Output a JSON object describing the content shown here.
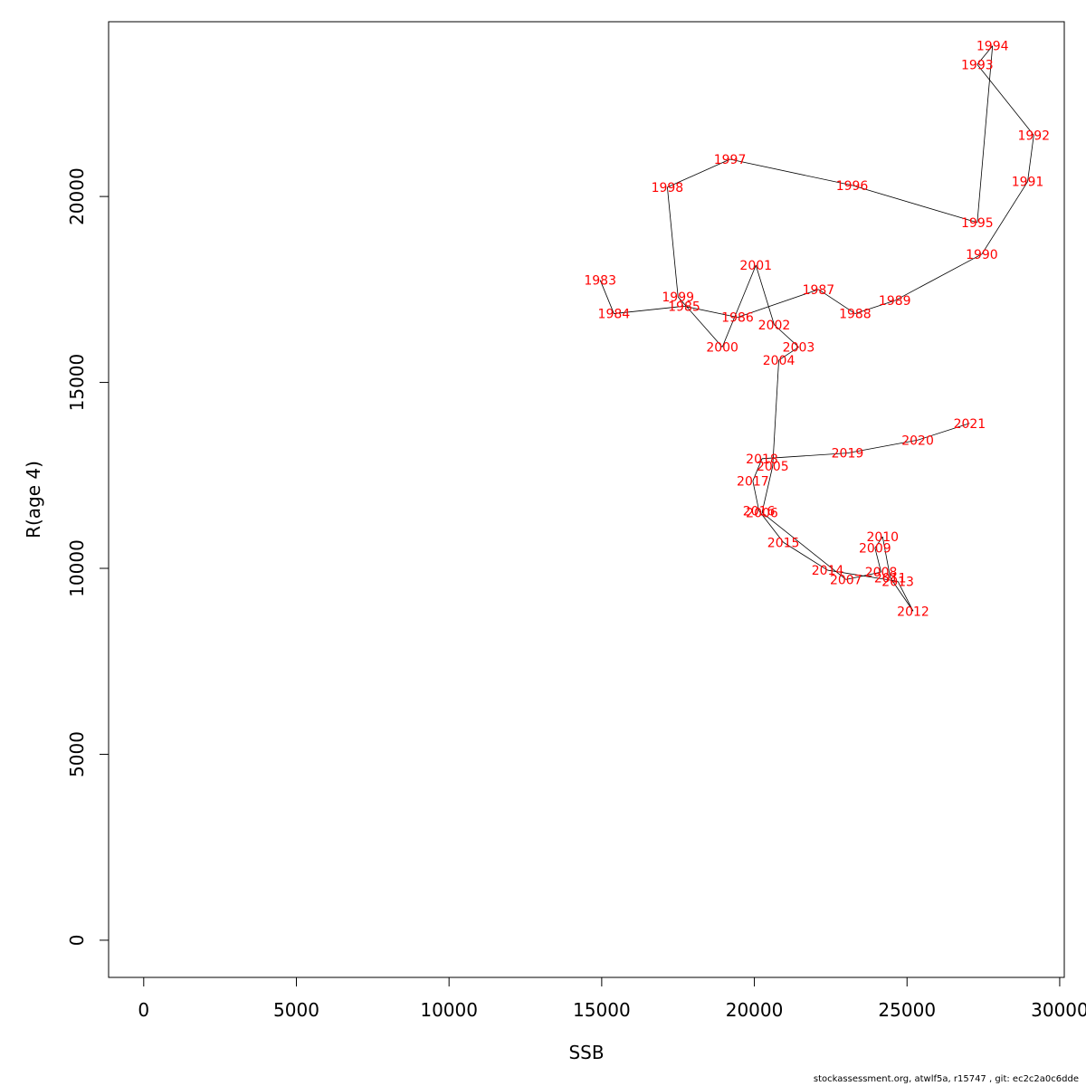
{
  "chart_data": {
    "type": "line",
    "xlabel": "SSB",
    "ylabel": "R(age 4)",
    "xlim": [
      -1150,
      30150
    ],
    "ylim": [
      -1000,
      24700
    ],
    "x_ticks": [
      0,
      5000,
      10000,
      15000,
      20000,
      25000,
      30000
    ],
    "y_ticks": [
      0,
      5000,
      10000,
      15000,
      20000
    ],
    "x_tick_labels": [
      "0",
      "5000",
      "10000",
      "15000",
      "20000",
      "25000",
      "30000"
    ],
    "y_tick_labels": [
      "0",
      "5000",
      "10000",
      "15000",
      "20000"
    ],
    "line_color": "#000000",
    "label_color": "#ff0000",
    "points": [
      {
        "year": "1983",
        "x": 14950,
        "y": 17750
      },
      {
        "year": "1984",
        "x": 15400,
        "y": 16850
      },
      {
        "year": "1985",
        "x": 17700,
        "y": 17050
      },
      {
        "year": "1986",
        "x": 19450,
        "y": 16750
      },
      {
        "year": "1987",
        "x": 22100,
        "y": 17500
      },
      {
        "year": "1988",
        "x": 23300,
        "y": 16850
      },
      {
        "year": "1989",
        "x": 24600,
        "y": 17200
      },
      {
        "year": "1990",
        "x": 27450,
        "y": 18450
      },
      {
        "year": "1991",
        "x": 28950,
        "y": 20400
      },
      {
        "year": "1992",
        "x": 29150,
        "y": 21650
      },
      {
        "year": "1993",
        "x": 27300,
        "y": 23550
      },
      {
        "year": "1994",
        "x": 27800,
        "y": 24050
      },
      {
        "year": "1995",
        "x": 27300,
        "y": 19300
      },
      {
        "year": "1996",
        "x": 23200,
        "y": 20300
      },
      {
        "year": "1997",
        "x": 19200,
        "y": 21000
      },
      {
        "year": "1998",
        "x": 17150,
        "y": 20250
      },
      {
        "year": "1999",
        "x": 17500,
        "y": 17300
      },
      {
        "year": "2000",
        "x": 18950,
        "y": 15950
      },
      {
        "year": "2001",
        "x": 20050,
        "y": 18150
      },
      {
        "year": "2002",
        "x": 20650,
        "y": 16550
      },
      {
        "year": "2003",
        "x": 21450,
        "y": 15950
      },
      {
        "year": "2004",
        "x": 20800,
        "y": 15600
      },
      {
        "year": "2005",
        "x": 20600,
        "y": 12750
      },
      {
        "year": "2006",
        "x": 20250,
        "y": 11500
      },
      {
        "year": "2007",
        "x": 23000,
        "y": 9700
      },
      {
        "year": "2008",
        "x": 24150,
        "y": 9900
      },
      {
        "year": "2009",
        "x": 23950,
        "y": 10550
      },
      {
        "year": "2010",
        "x": 24200,
        "y": 10850
      },
      {
        "year": "2011",
        "x": 24450,
        "y": 9750
      },
      {
        "year": "2012",
        "x": 25200,
        "y": 8850
      },
      {
        "year": "2013",
        "x": 24700,
        "y": 9650
      },
      {
        "year": "2014",
        "x": 22400,
        "y": 9950
      },
      {
        "year": "2015",
        "x": 20950,
        "y": 10700
      },
      {
        "year": "2016",
        "x": 20150,
        "y": 11550
      },
      {
        "year": "2017",
        "x": 19950,
        "y": 12350
      },
      {
        "year": "2018",
        "x": 20250,
        "y": 12950
      },
      {
        "year": "2019",
        "x": 23050,
        "y": 13100
      },
      {
        "year": "2020",
        "x": 25350,
        "y": 13450
      },
      {
        "year": "2021",
        "x": 27050,
        "y": 13900
      }
    ]
  },
  "footer": "stockassessment.org, atwlf5a, r15747 , git: ec2c2a0c6dde"
}
